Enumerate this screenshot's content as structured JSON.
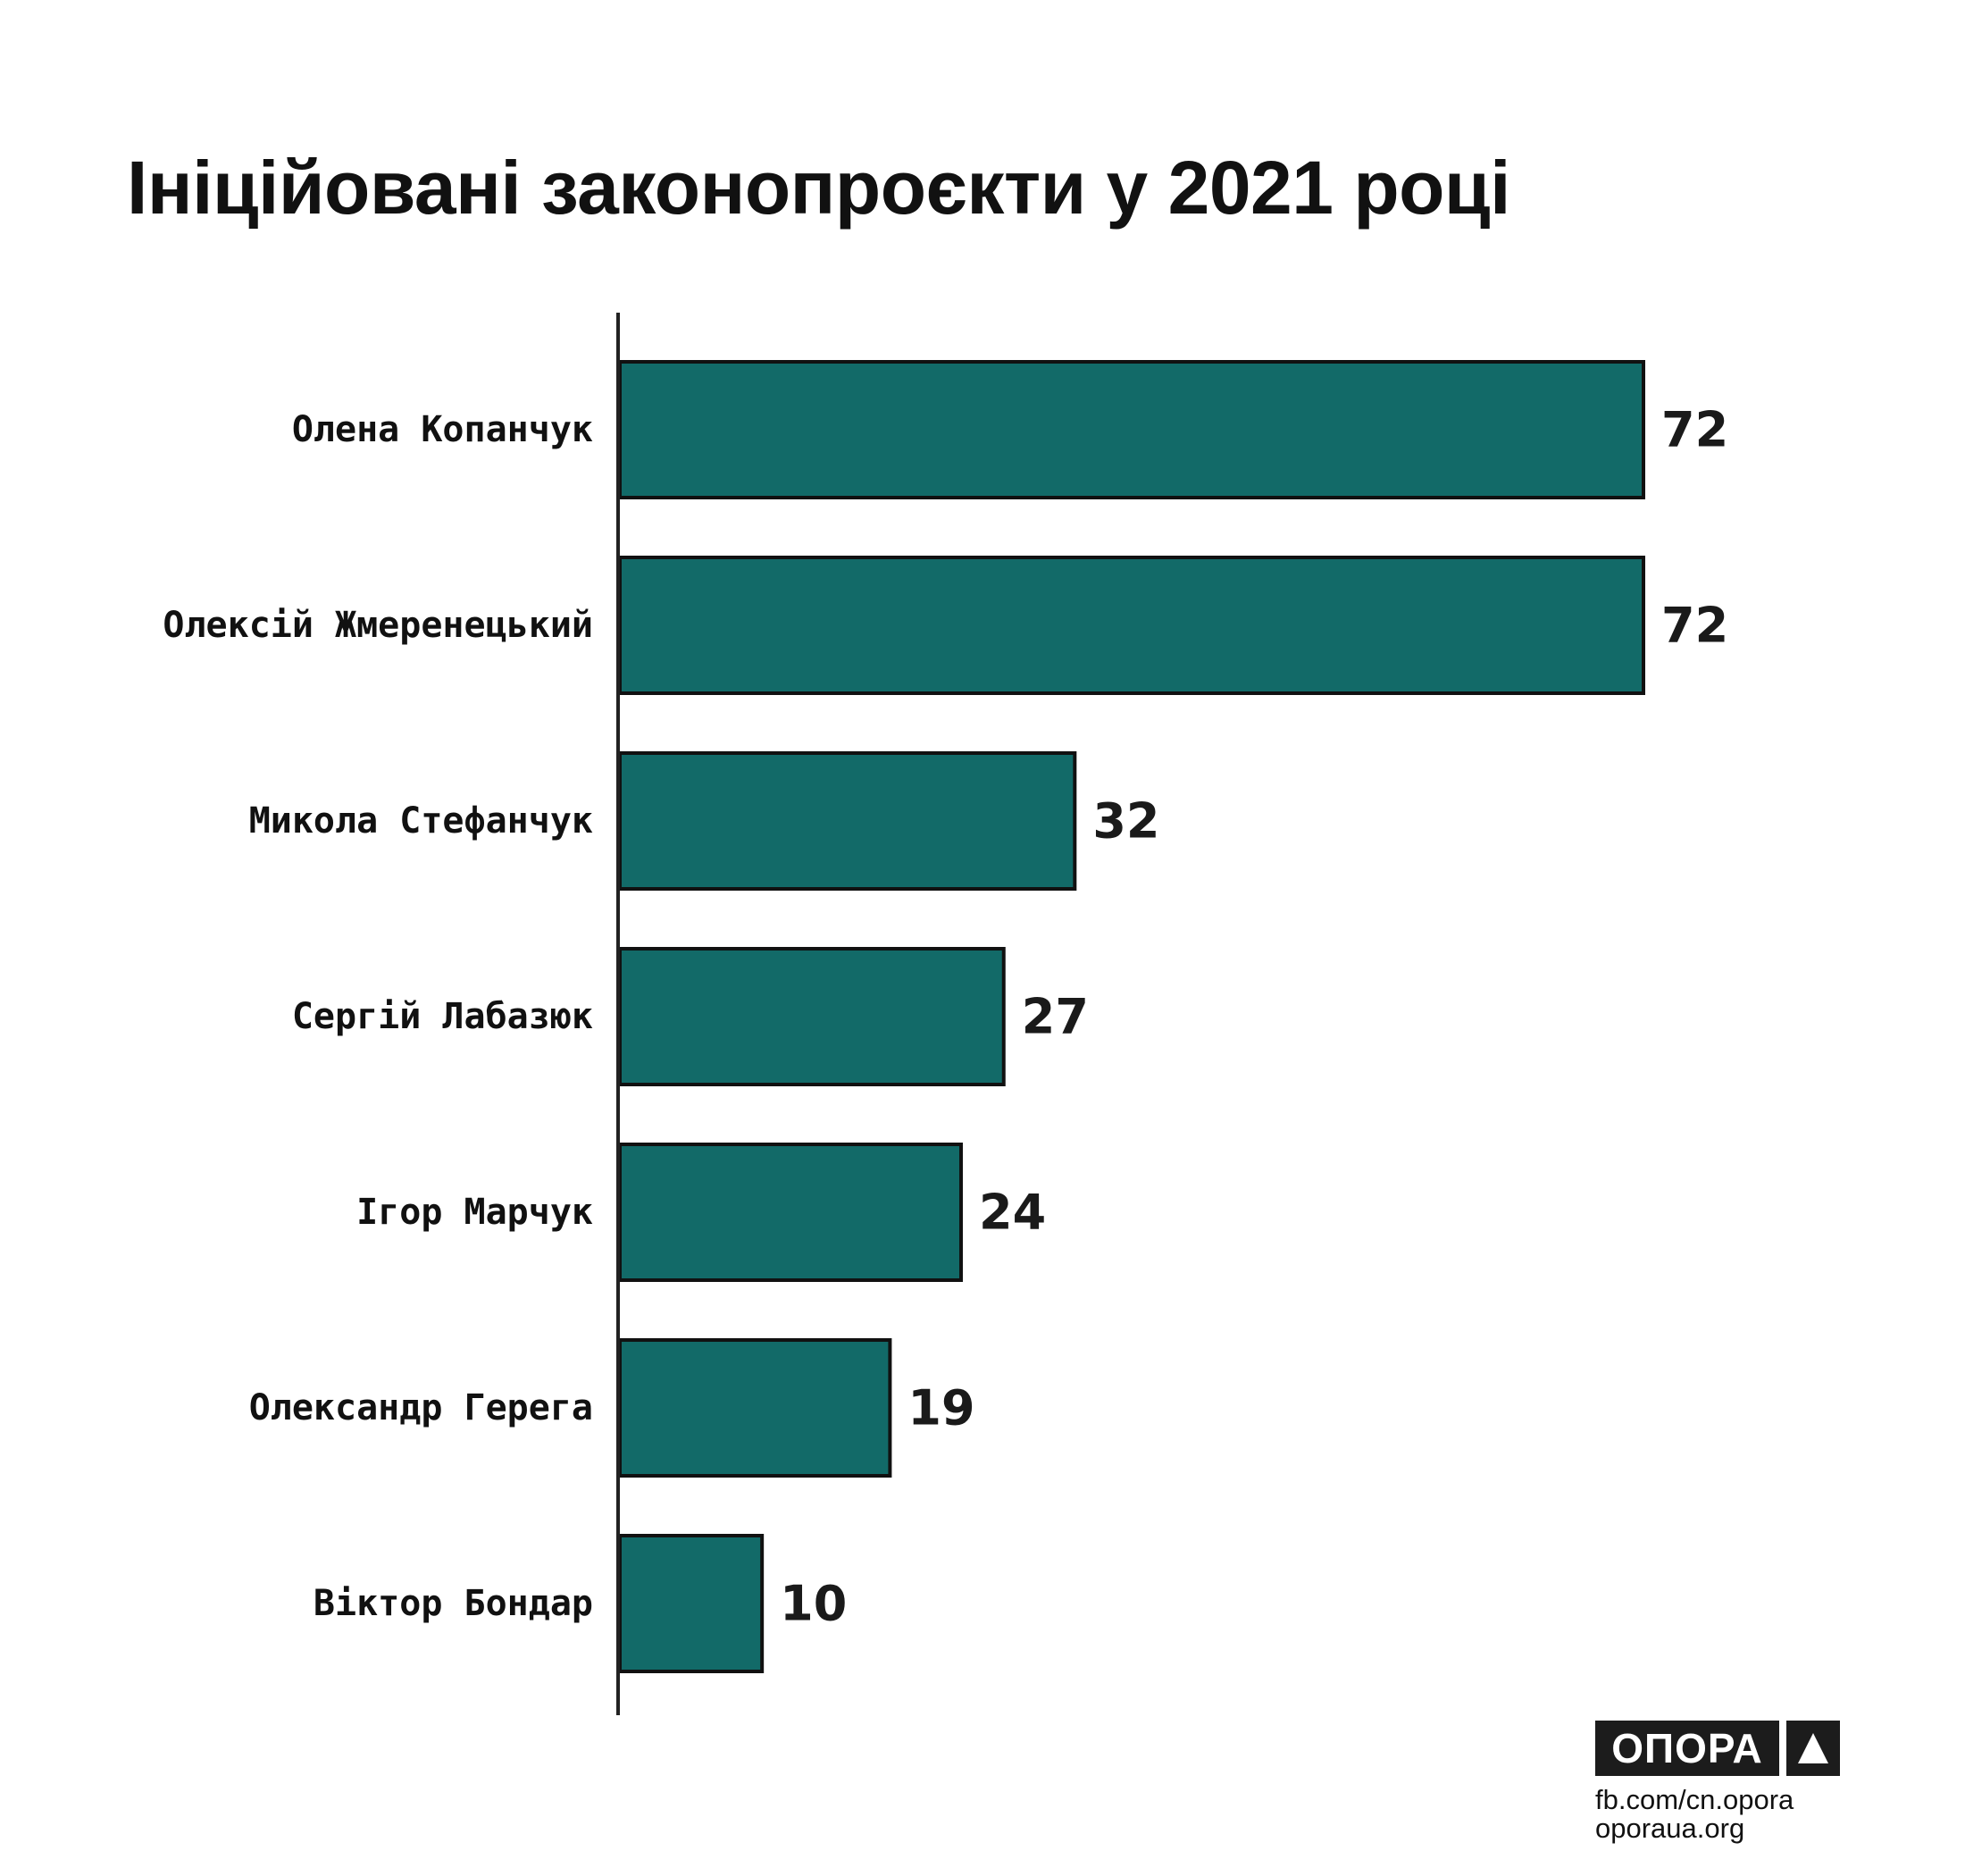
{
  "title": "Ініційовані законопроєкти у 2021 році",
  "chart_data": {
    "type": "bar",
    "orientation": "horizontal",
    "title": "Ініційовані законопроєкти у 2021 році",
    "categories": [
      "Олена Копанчук",
      "Олексій Жмеренецький",
      "Микола Стефанчук",
      "Сергій Лабазюк",
      "Ігор Марчук",
      "Олександр Герега",
      "Віктор Бондар"
    ],
    "values": [
      72,
      72,
      32,
      27,
      24,
      19,
      10
    ],
    "xlabel": "",
    "ylabel": "",
    "xlim": [
      0,
      72
    ],
    "grid": false,
    "legend": "none",
    "data_labels": true
  },
  "colors": {
    "bar_fill": "#126a68",
    "bar_stroke": "#111111",
    "axis": "#222222",
    "text": "#111111"
  },
  "footer": {
    "logo_text": "ОПОРА",
    "logo_icon": "triangle-icon",
    "facebook": "fb.com/cn.opora",
    "website": "oporaua.org"
  }
}
